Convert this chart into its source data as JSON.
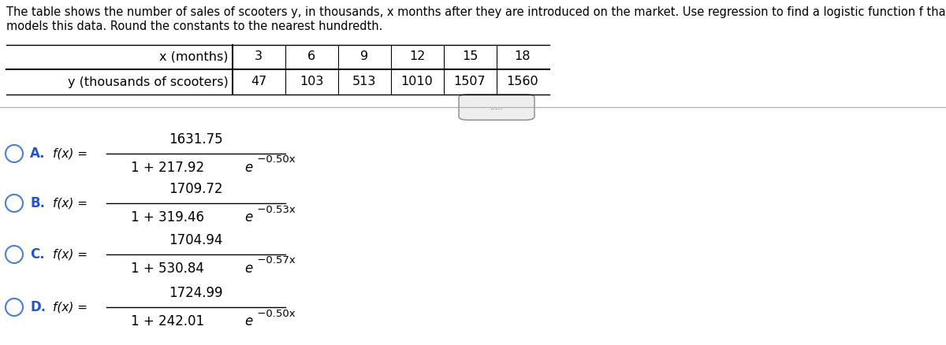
{
  "bg_color": "#ffffff",
  "header_line1": "The table shows the number of sales of scooters y, in thousands, x months after they are introduced on the market. Use regression to find a logistic function f that",
  "header_line2": "models this data. Round the constants to the nearest hundredth.",
  "table": {
    "col_labels": [
      "x (months)",
      "3",
      "6",
      "9",
      "12",
      "15",
      "18"
    ],
    "row2_label": "y (thousands of scooters)",
    "row2_values": [
      "47",
      "103",
      "513",
      "1010",
      "1507",
      "1560"
    ]
  },
  "divider_dots": ".....",
  "options": [
    {
      "letter": "A",
      "numerator": "1631.75",
      "denom_left": "1 + 217.92 ",
      "denom_e": "e",
      "exponent": " −0.50x"
    },
    {
      "letter": "B",
      "numerator": "1709.72",
      "denom_left": "1 + 319.46 ",
      "denom_e": "e",
      "exponent": " −0.53x"
    },
    {
      "letter": "C",
      "numerator": "1704.94",
      "denom_left": "1 + 530.84 ",
      "denom_e": "e",
      "exponent": " −0.57x"
    },
    {
      "letter": "D",
      "numerator": "1724.99",
      "denom_left": "1 + 242.01 ",
      "denom_e": "e",
      "exponent": " −0.50x"
    }
  ],
  "circle_color": "#4a7fd4",
  "text_color": "#000000",
  "label_color": "#2255cc",
  "font_size_header": 10.5,
  "font_size_table": 11.5,
  "font_size_label": 12,
  "font_size_fxeq": 11,
  "font_size_num": 12,
  "font_size_denom": 12,
  "font_size_exp": 9.5
}
